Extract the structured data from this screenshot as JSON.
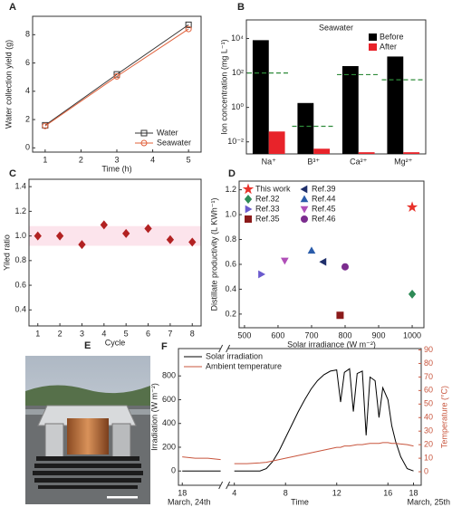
{
  "chart_data": [
    {
      "type": "line",
      "panel_label": "A",
      "xlabel": "Time (h)",
      "ylabel": "Water collection yield (g)",
      "x": [
        1,
        3,
        5
      ],
      "xlim": [
        0.65,
        5.35
      ],
      "xticks": [
        1,
        2,
        3,
        4,
        5
      ],
      "ylim": [
        -0.3,
        9.3
      ],
      "yticks": [
        0,
        2,
        4,
        6,
        8
      ],
      "legend": "lower right",
      "series": [
        {
          "name": "Water",
          "color": "#333333",
          "marker": "square",
          "marker_filled": false,
          "values": [
            1.6,
            5.2,
            8.7
          ]
        },
        {
          "name": "Seawater",
          "color": "#e0603a",
          "marker": "circle",
          "marker_filled": false,
          "values": [
            1.55,
            5.05,
            8.4
          ]
        }
      ]
    },
    {
      "type": "bar",
      "panel_label": "B",
      "title": "Seawater",
      "ylabel": "Ion concentration (mg L⁻¹)",
      "categories": [
        "Na⁺",
        "B³⁺",
        "Ca²⁺",
        "Mg²⁺"
      ],
      "ylog": true,
      "ylim": [
        0.002,
        120000
      ],
      "yticks": [
        {
          "value": 0.01,
          "label": "10⁻²"
        },
        {
          "value": 1,
          "label": "10⁰"
        },
        {
          "value": 100,
          "label": "10²"
        },
        {
          "value": 10000,
          "label": "10⁴"
        }
      ],
      "legend": "upper right",
      "series": [
        {
          "name": "Before",
          "color": "#000000",
          "values": [
            8000,
            1.8,
            250,
            900
          ]
        },
        {
          "name": "After",
          "color": "#e8232a",
          "values": [
            0.04,
            0.004,
            0.0025,
            0.0025
          ]
        }
      ],
      "thresholds": {
        "color": "#2e8b3a",
        "values": [
          100,
          0.08,
          80,
          40
        ]
      }
    },
    {
      "type": "scatter",
      "panel_label": "C",
      "xlabel": "Cycle",
      "ylabel": "Yiled ratio",
      "x": [
        1,
        2,
        3,
        4,
        5,
        6,
        7,
        8
      ],
      "xlim": [
        0.6,
        8.4
      ],
      "xticks": [
        1,
        2,
        3,
        4,
        5,
        6,
        7,
        8
      ],
      "ylim": [
        0.27,
        1.46
      ],
      "yticks": [
        0.4,
        0.6,
        0.8,
        {
          "value": 1,
          "label": "1.0"
        },
        1.2,
        1.4
      ],
      "band": [
        0.92,
        1.08
      ],
      "band_color": "#fce4ec",
      "series": [
        {
          "color": "#b22222",
          "marker": "diamond",
          "marker_filled": true,
          "values": [
            1.0,
            1.0,
            0.93,
            1.09,
            1.02,
            1.06,
            0.97,
            0.95
          ]
        }
      ]
    },
    {
      "type": "scatter",
      "panel_label": "D",
      "xlabel": "Solar irradiance (W m⁻²)",
      "ylabel": "Distillate productivity (L KWh⁻¹)",
      "xlim": [
        484,
        1035
      ],
      "xticks": [
        500,
        600,
        700,
        800,
        900,
        1000
      ],
      "ylim": [
        0.09,
        1.27
      ],
      "yticks": [
        0.2,
        0.4,
        0.6,
        0.8,
        {
          "value": 1,
          "label": "1.0"
        },
        1.2
      ],
      "legend": "upper left",
      "series": [
        {
          "name": "This work",
          "color": "#e8322a",
          "marker": "star",
          "marker_filled": true,
          "x": [
            1000
          ],
          "values": [
            1.06
          ]
        },
        {
          "name": "Ref.32",
          "color": "#2e8b57",
          "marker": "diamond",
          "marker_filled": true,
          "x": [
            1000
          ],
          "values": [
            0.36
          ]
        },
        {
          "name": "Ref.33",
          "color": "#6a5acd",
          "marker": "triangle-right",
          "marker_filled": true,
          "x": [
            550
          ],
          "values": [
            0.52
          ]
        },
        {
          "name": "Ref.35",
          "color": "#8b1a1a",
          "marker": "square",
          "marker_filled": true,
          "x": [
            785
          ],
          "values": [
            0.19
          ]
        },
        {
          "name": "Ref.39",
          "color": "#1f2f6b",
          "marker": "triangle-left",
          "marker_filled": true,
          "x": [
            735
          ],
          "values": [
            0.62
          ]
        },
        {
          "name": "Ref.44",
          "color": "#2a5caa",
          "marker": "triangle-up",
          "marker_filled": true,
          "x": [
            700
          ],
          "values": [
            0.71
          ]
        },
        {
          "name": "Ref.45",
          "color": "#b04fb8",
          "marker": "triangle-down",
          "marker_filled": true,
          "x": [
            620
          ],
          "values": [
            0.63
          ]
        },
        {
          "name": "Ref.46",
          "color": "#7b2d8e",
          "marker": "circle",
          "marker_filled": true,
          "x": [
            800
          ],
          "values": [
            0.58
          ]
        }
      ]
    },
    {
      "type": "line",
      "panel_label": "F",
      "xlabel": "Time",
      "ylabel": "Irradiation (W m⁻²)",
      "y2label": "Temperature (°C)",
      "date_labels": [
        "March, 24th",
        "March, 25th"
      ],
      "x": [
        18,
        19,
        20,
        21,
        28,
        29,
        30,
        30.5,
        31,
        31.5,
        32,
        32.5,
        33,
        33.5,
        34,
        34.5,
        35,
        35.5,
        36,
        36.3,
        36.6,
        37,
        37.3,
        37.6,
        38,
        38.3,
        38.6,
        39,
        39.3,
        39.6,
        40,
        40.3,
        40.6,
        41,
        41.5,
        42
      ],
      "xlim": [
        17.7,
        42.6
      ],
      "xbreak": [
        21,
        27.5
      ],
      "xticks": [
        18,
        {
          "value": 28,
          "label": "4"
        },
        {
          "value": 32,
          "label": "8"
        },
        {
          "value": 36,
          "label": "12"
        },
        {
          "value": 40,
          "label": "16"
        },
        {
          "value": 42,
          "label": "18"
        }
      ],
      "ylim": [
        -120,
        1030
      ],
      "yticks": [
        0,
        200,
        400,
        600,
        800
      ],
      "y2lim": [
        -10,
        91
      ],
      "y2ticks": [
        0,
        10,
        20,
        30,
        40,
        50,
        60,
        70,
        80,
        90
      ],
      "y2color": "#c8553d",
      "legend": "upper left",
      "series": [
        {
          "name": "Solar irradiation",
          "color": "#000000",
          "values": [
            0,
            0,
            0,
            0,
            0,
            0,
            0,
            20,
            80,
            170,
            280,
            390,
            500,
            600,
            690,
            760,
            810,
            840,
            850,
            580,
            830,
            860,
            500,
            820,
            840,
            300,
            790,
            760,
            450,
            700,
            600,
            380,
            250,
            120,
            20,
            0
          ]
        },
        {
          "name": "Ambient temperature",
          "color": "#c8553d",
          "axis": "y2",
          "values": [
            11,
            10,
            10,
            9,
            6,
            6,
            6.5,
            7,
            8,
            9,
            10,
            11,
            12,
            13,
            14,
            15,
            16,
            17,
            18,
            18,
            19,
            19,
            19.5,
            20,
            20,
            20.5,
            21,
            21,
            21,
            21.5,
            21.5,
            21,
            21,
            20.5,
            20,
            19
          ]
        }
      ]
    }
  ],
  "photo": {
    "panel_label": "E"
  }
}
